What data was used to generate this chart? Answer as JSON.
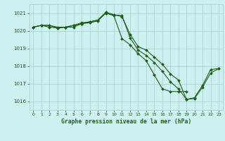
{
  "title": "Graphe pression niveau de la mer (hPa)",
  "bg_color": "#cff0f0",
  "grid_color": "#aad4d4",
  "line_color": "#1a5e1a",
  "xlim": [
    -0.5,
    23.5
  ],
  "ylim": [
    1015.5,
    1021.5
  ],
  "yticks": [
    1016,
    1017,
    1018,
    1019,
    1020,
    1021
  ],
  "xticks": [
    0,
    1,
    2,
    3,
    4,
    5,
    6,
    7,
    8,
    9,
    10,
    11,
    12,
    13,
    14,
    15,
    16,
    17,
    18,
    19,
    20,
    21,
    22,
    23
  ],
  "series": [
    [
      1020.2,
      1020.3,
      1020.3,
      1020.2,
      1020.2,
      1020.2,
      1020.4,
      1020.5,
      1020.6,
      1021.0,
      1020.9,
      1020.85,
      1019.6,
      1018.9,
      1018.6,
      1018.2,
      1017.7,
      1017.1,
      1016.7,
      1016.1,
      1016.2,
      1016.9,
      1017.8,
      1017.85
    ],
    [
      1020.2,
      1020.3,
      1020.2,
      1020.15,
      1020.2,
      1020.3,
      1020.4,
      1020.45,
      1020.55,
      1021.0,
      1020.85,
      1019.55,
      1019.2,
      1018.7,
      1018.3,
      1017.5,
      1016.7,
      1016.55,
      1016.55,
      1016.55,
      null,
      null,
      null,
      null
    ],
    [
      1020.2,
      1020.3,
      1020.3,
      1020.15,
      1020.2,
      1020.3,
      1020.45,
      1020.5,
      1020.6,
      1021.05,
      1020.9,
      1020.8,
      1019.8,
      1019.1,
      1018.9,
      1018.5,
      1018.1,
      1017.55,
      1017.2,
      1016.1,
      1016.15,
      1016.8,
      1017.6,
      1017.85
    ]
  ]
}
